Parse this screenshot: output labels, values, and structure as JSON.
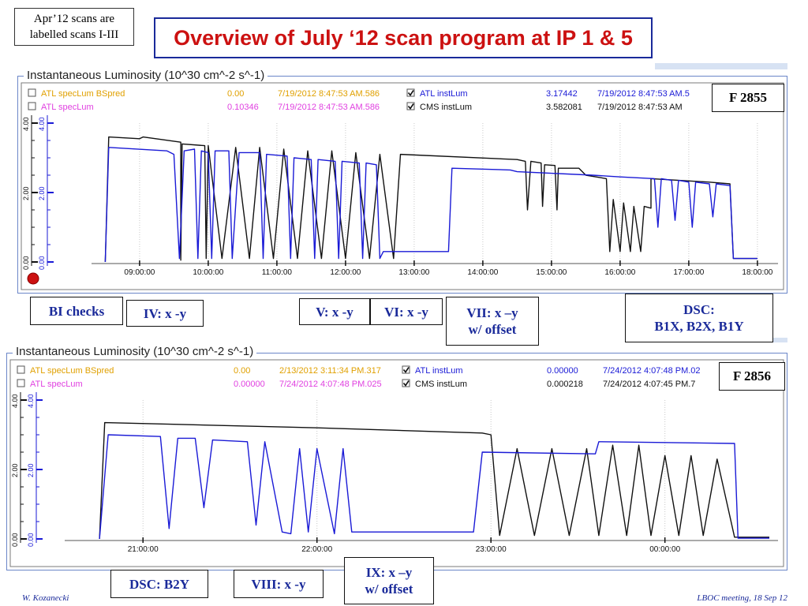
{
  "note": [
    "Apr’12 scans are",
    "labelled scans I-III"
  ],
  "slide_title": "Overview of July ‘12 scan program at IP 1 & 5",
  "footer_left": "W. Kozanecki",
  "footer_right": "LBOC meeting, 18 Sep 12",
  "colors": {
    "atlas": "#1a1ad6",
    "cms": "#111111",
    "bspred": "#e0a000",
    "speclum": "#e040e0",
    "accent": "#cc1111",
    "callout": "#1a2a9a"
  },
  "chart_data": [
    {
      "type": "line",
      "title": "Instantaneous Luminosity (10^30 cm^-2 s^-1)",
      "fill_label": "F 2855",
      "legend": [
        {
          "checked": false,
          "name": "ATL specLum BSpred",
          "value": "0.00",
          "time": "7/19/2012 8:47:53 AM.586",
          "color": "#e0a000"
        },
        {
          "checked": false,
          "name": "ATL specLum",
          "value": "0.10346",
          "time": "7/19/2012 8:47:53 AM.586",
          "color": "#e040e0"
        },
        {
          "checked": true,
          "name": "ATL instLum",
          "value": "3.17442",
          "time": "7/19/2012 8:47:53 AM.5",
          "color": "#1a1ad6"
        },
        {
          "checked": true,
          "name": "CMS instLum",
          "value": "3.582081",
          "time": "7/19/2012 8:47:53 AM",
          "color": "#111111"
        }
      ],
      "y_ticks": [
        "4.00",
        "2.00",
        "0.00"
      ],
      "y_ticks_blue": [
        "4.00",
        "2.00",
        "0.00"
      ],
      "ylim": [
        0,
        4
      ],
      "xlim": [
        8.3,
        18.3
      ],
      "x_ticks": [
        {
          "v": 9,
          "label": "09:00:00"
        },
        {
          "v": 10,
          "label": "10:00:00"
        },
        {
          "v": 11,
          "label": "11:00:00"
        },
        {
          "v": 12,
          "label": "12:00:00"
        },
        {
          "v": 13,
          "label": "13:00:00"
        },
        {
          "v": 14,
          "label": "14:00:00"
        },
        {
          "v": 15,
          "label": "15:00:00"
        },
        {
          "v": 16,
          "label": "16:00:00"
        },
        {
          "v": 17,
          "label": "17:00:00"
        },
        {
          "v": 18,
          "label": "18:00:00"
        }
      ],
      "series": [
        {
          "name": "CMS instLum",
          "color": "#111111",
          "points": [
            [
              8.5,
              0
            ],
            [
              8.55,
              3.6
            ],
            [
              9.0,
              3.55
            ],
            [
              9.05,
              3.6
            ],
            [
              9.6,
              3.45
            ],
            [
              9.6,
              0.05
            ],
            [
              9.62,
              3.4
            ],
            [
              9.95,
              3.35
            ],
            [
              9.97,
              0.1
            ],
            [
              10.0,
              3.35
            ],
            [
              10.2,
              0.1
            ],
            [
              10.4,
              3.3
            ],
            [
              10.6,
              0.1
            ],
            [
              10.75,
              3.3
            ],
            [
              10.95,
              0.1
            ],
            [
              11.1,
              3.25
            ],
            [
              11.3,
              0.1
            ],
            [
              11.45,
              3.2
            ],
            [
              11.65,
              0.1
            ],
            [
              11.8,
              3.2
            ],
            [
              12.0,
              0.1
            ],
            [
              12.15,
              3.15
            ],
            [
              12.35,
              0.1
            ],
            [
              12.5,
              3.1
            ],
            [
              12.7,
              0.1
            ],
            [
              12.8,
              3.1
            ],
            [
              14.5,
              2.95
            ],
            [
              14.62,
              2.9
            ],
            [
              14.65,
              1.5
            ],
            [
              14.7,
              2.9
            ],
            [
              14.85,
              2.85
            ],
            [
              14.87,
              1.6
            ],
            [
              14.9,
              2.8
            ],
            [
              15.05,
              2.78
            ],
            [
              15.08,
              1.5
            ],
            [
              15.1,
              2.7
            ],
            [
              15.4,
              2.7
            ],
            [
              15.5,
              2.5
            ],
            [
              15.8,
              2.4
            ],
            [
              15.85,
              0.3
            ],
            [
              15.9,
              1.8
            ],
            [
              16.0,
              0.3
            ],
            [
              16.05,
              1.7
            ],
            [
              16.15,
              0.3
            ],
            [
              16.2,
              1.6
            ],
            [
              16.3,
              0.3
            ],
            [
              16.35,
              1.6
            ],
            [
              16.45,
              1.55
            ],
            [
              16.45,
              2.4
            ],
            [
              17.3,
              2.3
            ],
            [
              17.6,
              2.25
            ],
            [
              17.65,
              0.1
            ],
            [
              18.0,
              0.1
            ]
          ]
        },
        {
          "name": "ATL instLum",
          "color": "#1a1ad6",
          "points": [
            [
              8.5,
              0
            ],
            [
              8.55,
              3.3
            ],
            [
              9.4,
              3.2
            ],
            [
              9.5,
              3.1
            ],
            [
              9.58,
              0.1
            ],
            [
              9.65,
              3.2
            ],
            [
              9.8,
              3.25
            ],
            [
              9.85,
              0.1
            ],
            [
              9.9,
              3.2
            ],
            [
              10.0,
              3.15
            ],
            [
              10.05,
              0.1
            ],
            [
              10.1,
              3.2
            ],
            [
              10.3,
              3.2
            ],
            [
              10.35,
              0.1
            ],
            [
              10.45,
              3.15
            ],
            [
              10.75,
              3.15
            ],
            [
              10.8,
              0.1
            ],
            [
              10.85,
              3.1
            ],
            [
              11.15,
              3.05
            ],
            [
              11.2,
              0.1
            ],
            [
              11.25,
              3.0
            ],
            [
              11.5,
              2.95
            ],
            [
              11.55,
              0.1
            ],
            [
              11.6,
              2.95
            ],
            [
              11.85,
              2.9
            ],
            [
              11.9,
              0.1
            ],
            [
              11.95,
              2.9
            ],
            [
              12.2,
              2.85
            ],
            [
              12.25,
              0.1
            ],
            [
              12.3,
              2.85
            ],
            [
              12.45,
              2.8
            ],
            [
              12.5,
              0.1
            ],
            [
              12.55,
              0.3
            ],
            [
              13.5,
              0.3
            ],
            [
              13.55,
              2.7
            ],
            [
              14.4,
              2.65
            ],
            [
              14.5,
              2.6
            ],
            [
              15.6,
              2.5
            ],
            [
              16.0,
              2.45
            ],
            [
              16.5,
              2.4
            ],
            [
              16.55,
              1.0
            ],
            [
              16.6,
              2.4
            ],
            [
              16.75,
              2.35
            ],
            [
              16.8,
              1.2
            ],
            [
              16.85,
              2.35
            ],
            [
              17.0,
              2.3
            ],
            [
              17.05,
              1.0
            ],
            [
              17.1,
              2.3
            ],
            [
              17.3,
              2.25
            ],
            [
              17.35,
              1.3
            ],
            [
              17.4,
              2.25
            ],
            [
              17.6,
              2.2
            ],
            [
              17.65,
              0.1
            ],
            [
              18.0,
              0.1
            ]
          ]
        }
      ]
    },
    {
      "type": "line",
      "title": "Instantaneous Luminosity (10^30 cm^-2 s^-1)",
      "fill_label": "F 2856",
      "legend": [
        {
          "checked": false,
          "name": "ATL specLum BSpred",
          "value": "0.00",
          "time": "2/13/2012 3:11:34 PM.317",
          "color": "#e0a000"
        },
        {
          "checked": false,
          "name": "ATL specLum",
          "value": "0.00000",
          "time": "7/24/2012 4:07:48 PM.025",
          "color": "#e040e0"
        },
        {
          "checked": true,
          "name": "ATL instLum",
          "value": "0.00000",
          "time": "7/24/2012 4:07:48 PM.02",
          "color": "#1a1ad6"
        },
        {
          "checked": true,
          "name": "CMS instLum",
          "value": "0.000218",
          "time": "7/24/2012 4:07:45 PM.7",
          "color": "#111111"
        }
      ],
      "y_ticks": [
        "4.00",
        "2.00",
        "0.00"
      ],
      "y_ticks_blue": [
        "4.00",
        "2.00",
        "0.00"
      ],
      "ylim": [
        0,
        4
      ],
      "xlim": [
        20.55,
        24.65
      ],
      "x_ticks": [
        {
          "v": 21,
          "label": "21:00:00"
        },
        {
          "v": 22,
          "label": "22:00:00"
        },
        {
          "v": 23,
          "label": "23:00:00"
        },
        {
          "v": 24,
          "label": "00:00:00"
        }
      ],
      "series": [
        {
          "name": "CMS instLum",
          "color": "#111111",
          "points": [
            [
              20.75,
              0
            ],
            [
              20.78,
              3.35
            ],
            [
              21.2,
              3.3
            ],
            [
              22.0,
              3.2
            ],
            [
              22.95,
              3.05
            ],
            [
              23.0,
              3.0
            ],
            [
              23.05,
              0.1
            ],
            [
              23.15,
              2.6
            ],
            [
              23.25,
              0.1
            ],
            [
              23.35,
              2.6
            ],
            [
              23.45,
              0.1
            ],
            [
              23.55,
              2.6
            ],
            [
              23.62,
              0.1
            ],
            [
              23.7,
              2.7
            ],
            [
              23.78,
              0.1
            ],
            [
              23.85,
              2.7
            ],
            [
              23.92,
              0.1
            ],
            [
              24.0,
              2.4
            ],
            [
              24.08,
              0.1
            ],
            [
              24.15,
              2.4
            ],
            [
              24.22,
              0.1
            ],
            [
              24.3,
              2.3
            ],
            [
              24.4,
              0.05
            ],
            [
              24.6,
              0.05
            ]
          ]
        },
        {
          "name": "ATL instLum",
          "color": "#1a1ad6",
          "points": [
            [
              20.75,
              0
            ],
            [
              20.8,
              3.0
            ],
            [
              21.1,
              2.95
            ],
            [
              21.15,
              0.3
            ],
            [
              21.2,
              2.9
            ],
            [
              21.3,
              2.9
            ],
            [
              21.35,
              0.9
            ],
            [
              21.4,
              2.85
            ],
            [
              21.6,
              2.8
            ],
            [
              21.65,
              0.4
            ],
            [
              21.7,
              2.8
            ],
            [
              21.8,
              0.2
            ],
            [
              21.85,
              0.15
            ],
            [
              21.9,
              2.6
            ],
            [
              21.95,
              0.2
            ],
            [
              22.0,
              2.6
            ],
            [
              22.1,
              0.15
            ],
            [
              22.15,
              2.6
            ],
            [
              22.2,
              0.2
            ],
            [
              22.3,
              0.2
            ],
            [
              22.9,
              0.2
            ],
            [
              22.95,
              2.5
            ],
            [
              23.6,
              2.45
            ],
            [
              23.62,
              2.8
            ],
            [
              24.4,
              2.75
            ],
            [
              24.42,
              0.02
            ],
            [
              24.6,
              0.02
            ]
          ]
        }
      ]
    }
  ],
  "callouts": {
    "bi_checks": "BI checks",
    "iv": "IV: x -y",
    "v": "V: x -y",
    "vi": "VI: x -y",
    "vii": [
      "VII:  x –y",
      "w/ offset"
    ],
    "dsc_top": [
      "DSC:",
      "B1X, B2X, B1Y"
    ],
    "dsc_b2y": "DSC: B2Y",
    "viii": "VIII: x -y",
    "ix": [
      "IX:  x –y",
      "w/ offset"
    ]
  }
}
